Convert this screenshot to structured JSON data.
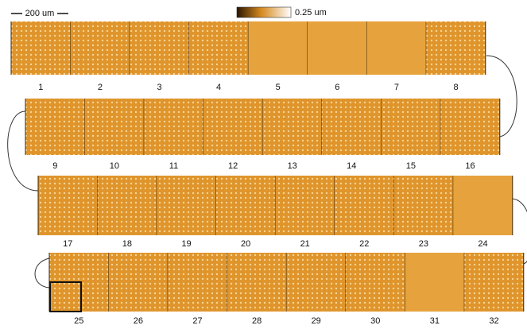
{
  "scale_bar": {
    "label": "200 um"
  },
  "color_bar": {
    "label": "0.25 um"
  },
  "panels": [
    {
      "label": "1",
      "patterned": true
    },
    {
      "label": "2",
      "patterned": true
    },
    {
      "label": "3",
      "patterned": true
    },
    {
      "label": "4",
      "patterned": true
    },
    {
      "label": "5",
      "patterned": false
    },
    {
      "label": "6",
      "patterned": false
    },
    {
      "label": "7",
      "patterned": false
    },
    {
      "label": "8",
      "patterned": true
    },
    {
      "label": "9",
      "patterned": true
    },
    {
      "label": "10",
      "patterned": true
    },
    {
      "label": "11",
      "patterned": true
    },
    {
      "label": "12",
      "patterned": true
    },
    {
      "label": "13",
      "patterned": true
    },
    {
      "label": "14",
      "patterned": true
    },
    {
      "label": "15",
      "patterned": true
    },
    {
      "label": "16",
      "patterned": true
    },
    {
      "label": "17",
      "patterned": true
    },
    {
      "label": "18",
      "patterned": true
    },
    {
      "label": "19",
      "patterned": true
    },
    {
      "label": "20",
      "patterned": true
    },
    {
      "label": "21",
      "patterned": true
    },
    {
      "label": "22",
      "patterned": true
    },
    {
      "label": "23",
      "patterned": true
    },
    {
      "label": "24",
      "patterned": false
    },
    {
      "label": "25",
      "patterned": true
    },
    {
      "label": "26",
      "patterned": true
    },
    {
      "label": "27",
      "patterned": true
    },
    {
      "label": "28",
      "patterned": true
    },
    {
      "label": "29",
      "patterned": true
    },
    {
      "label": "30",
      "patterned": true
    },
    {
      "label": "31",
      "patterned": false
    },
    {
      "label": "32",
      "patterned": true
    }
  ]
}
